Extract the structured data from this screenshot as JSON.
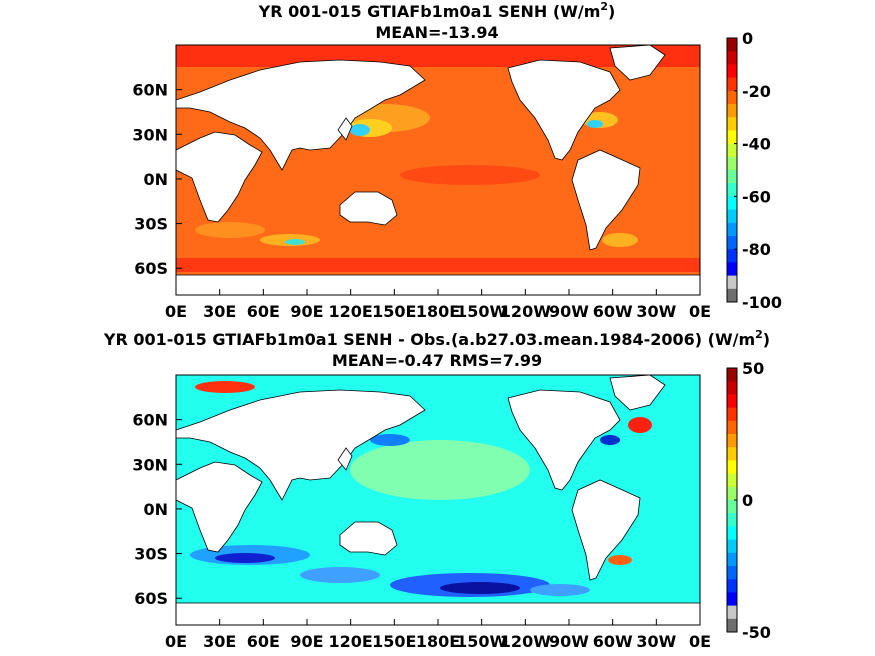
{
  "chart_data": [
    {
      "type": "heatmap",
      "title": "YR 001-015 GTIAFb1m0a1  SENH (W/m",
      "title_sup": "2",
      "title_end": ")",
      "subtitle": "MEAN=-13.94",
      "x_ticks": [
        "0E",
        "30E",
        "60E",
        "90E",
        "120E",
        "150E",
        "180E",
        "150W",
        "120W",
        "90W",
        "60W",
        "30W",
        "0E"
      ],
      "y_ticks": [
        "60N",
        "30N",
        "0N",
        "30S",
        "60S"
      ],
      "y_tick_lat": [
        60,
        30,
        0,
        -30,
        -60
      ],
      "lat_range": [
        -78,
        90
      ],
      "colorbar": {
        "min": -100,
        "max": 0,
        "ticks": [
          "0",
          "-20",
          "-40",
          "-60",
          "-80",
          "-100"
        ],
        "tick_values": [
          0,
          -20,
          -40,
          -60,
          -80,
          -100
        ]
      },
      "colormap": "jet",
      "land_color": "#ffffff"
    },
    {
      "type": "heatmap",
      "title": "YR 001-015 GTIAFb1m0a1 SENH - Obs.(a.b27.03.mean.1984-2006) (W/m",
      "title_sup": "2",
      "title_end": ")",
      "subtitle": "MEAN=-0.47 RMS=7.99",
      "x_ticks": [
        "0E",
        "30E",
        "60E",
        "90E",
        "120E",
        "150E",
        "180E",
        "150W",
        "120W",
        "90W",
        "60W",
        "30W",
        "0E"
      ],
      "y_ticks": [
        "60N",
        "30N",
        "0N",
        "30S",
        "60S"
      ],
      "y_tick_lat": [
        60,
        30,
        0,
        -30,
        -60
      ],
      "lat_range": [
        -78,
        90
      ],
      "colorbar": {
        "min": -50,
        "max": 50,
        "ticks": [
          "50",
          "0",
          "-50"
        ],
        "tick_values": [
          50,
          0,
          -50
        ]
      },
      "colormap": "jet",
      "land_color": "#ffffff"
    }
  ]
}
